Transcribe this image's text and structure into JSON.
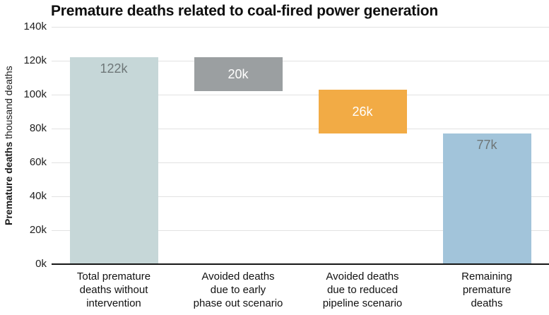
{
  "chart_data": {
    "type": "bar",
    "subtype": "waterfall",
    "title": "Premature deaths related to coal-fired power generation",
    "ylabel": "Premature deaths thousand deaths",
    "ylabel_bold": "Premature deaths",
    "ylabel_suffix": " thousand deaths",
    "y_unit": "thousand deaths (k)",
    "ylim": [
      0,
      140
    ],
    "grid": true,
    "legend": false,
    "yticks": [
      {
        "value": 0,
        "label": "0k"
      },
      {
        "value": 20,
        "label": "20k"
      },
      {
        "value": 40,
        "label": "40k"
      },
      {
        "value": 60,
        "label": "60k"
      },
      {
        "value": 80,
        "label": "80k"
      },
      {
        "value": 100,
        "label": "100k"
      },
      {
        "value": 120,
        "label": "120k"
      },
      {
        "value": 140,
        "label": "140k"
      }
    ],
    "categories": [
      "Total premature deaths without intervention",
      "Avoided deaths due to early phase out scenario",
      "Avoided deaths due to reduced pipeline scenario",
      "Remaining premature deaths"
    ],
    "bars": [
      {
        "category": "Total premature deaths without intervention",
        "label_lines": [
          "Total premature",
          "deaths without",
          "intervention"
        ],
        "start": 0,
        "end": 122,
        "value": 122,
        "value_label": "122k",
        "color": "#c6d7d8",
        "value_label_color": "#6e7778",
        "value_label_pos": "top"
      },
      {
        "category": "Avoided deaths due to early phase out scenario",
        "label_lines": [
          "Avoided deaths",
          "due to early",
          "phase out scenario"
        ],
        "start": 102,
        "end": 122,
        "value": 20,
        "value_label": "20k",
        "color": "#9b9fa1",
        "value_label_color": "#ffffff",
        "value_label_pos": "center"
      },
      {
        "category": "Avoided deaths due to reduced pipeline scenario",
        "label_lines": [
          "Avoided deaths",
          "due to reduced",
          "pipeline scenario"
        ],
        "start": 77,
        "end": 103,
        "value": 26,
        "value_label": "26k",
        "color": "#f2ab45",
        "value_label_color": "#ffffff",
        "value_label_pos": "center"
      },
      {
        "category": "Remaining premature deaths",
        "label_lines": [
          "Remaining",
          "premature",
          "deaths"
        ],
        "start": 0,
        "end": 77,
        "value": 77,
        "value_label": "77k",
        "color": "#a2c4da",
        "value_label_color": "#6e7677",
        "value_label_pos": "top"
      }
    ]
  },
  "colors": {
    "background": "#ffffff",
    "gridline": "#e2e2e2",
    "axis_line": "#161616",
    "title_text": "#0e0e0e",
    "tick_text": "#1f1f1f"
  }
}
